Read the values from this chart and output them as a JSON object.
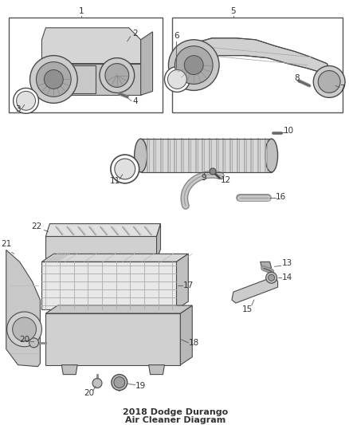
{
  "bg_color": "#ffffff",
  "line_color": "#4a4a4a",
  "text_color": "#333333",
  "leader_color": "#555555",
  "title": "2018 Dodge Durango\nAir Cleaner Diagram",
  "title_fontsize": 8,
  "fig_w": 4.38,
  "fig_h": 5.33,
  "dpi": 100
}
